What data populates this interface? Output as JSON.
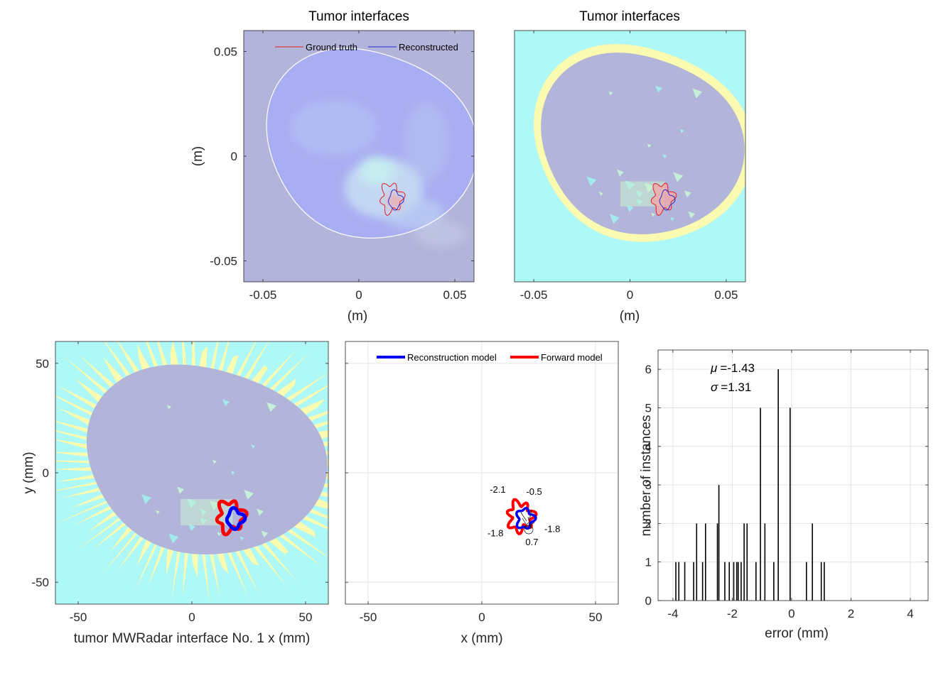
{
  "chart_data": [
    {
      "type": "heatmap",
      "title": "Tumor interfaces",
      "xlabel": "(m)",
      "ylabel": "(m)",
      "xlim": [
        -0.06,
        0.06
      ],
      "ylim": [
        -0.06,
        0.06
      ],
      "xticks": [
        -0.05,
        0,
        0.05
      ],
      "yticks": [
        -0.05,
        0,
        0.05
      ],
      "xtick_labels": [
        "-0.05",
        "0",
        "0.05"
      ],
      "ytick_labels": [
        "-0.05",
        "0",
        "0.05"
      ],
      "legend": {
        "position": "top",
        "entries": [
          {
            "label": "Ground truth",
            "color": "#e02020"
          },
          {
            "label": "Reconstructed",
            "color": "#2030d0"
          }
        ]
      },
      "colors": {
        "background": "#b3b4da",
        "outline": "#ffffff"
      }
    },
    {
      "type": "heatmap",
      "title": "Tumor interfaces",
      "xlabel": "(m)",
      "ylabel": "",
      "xlim": [
        -0.06,
        0.06
      ],
      "ylim": [
        -0.06,
        0.06
      ],
      "xticks": [
        -0.05,
        0,
        0.05
      ],
      "xtick_labels": [
        "-0.05",
        "0",
        "0.05"
      ],
      "colors": {
        "background": "#aef8f8",
        "skin": "#fafab0",
        "tissue": "#b3b4da"
      }
    },
    {
      "type": "heatmap",
      "title": "",
      "xlabel": "tumor MWRadar interface No. 1 x (mm)",
      "ylabel": "y (mm)",
      "xlim": [
        -60,
        60
      ],
      "ylim": [
        -60,
        60
      ],
      "xticks": [
        -50,
        0,
        50
      ],
      "yticks": [
        -50,
        0,
        50
      ],
      "xtick_labels": [
        "-50",
        "0",
        "50"
      ],
      "ytick_labels": [
        "-50",
        "0",
        "50"
      ],
      "colors": {
        "background": "#aef8f8",
        "skin": "#fafab0",
        "tissue": "#b3b4da",
        "forward": "#ff0000",
        "reconstruction": "#0000ff"
      }
    },
    {
      "type": "line",
      "title": "",
      "xlabel": "x (mm)",
      "ylabel": "",
      "xlim": [
        -60,
        60
      ],
      "ylim": [
        -60,
        60
      ],
      "xticks": [
        -50,
        0,
        50
      ],
      "xtick_labels": [
        "-50",
        "0",
        "50"
      ],
      "grid": true,
      "legend": {
        "position": "top-right",
        "entries": [
          {
            "label": "Reconstruction model",
            "color": "#0000ff"
          },
          {
            "label": "Forward model",
            "color": "#ff0000"
          }
        ]
      },
      "annotations": [
        {
          "text": "-2.1",
          "x": 7,
          "y": -9
        },
        {
          "text": "-0.5",
          "x": 23,
          "y": -10
        },
        {
          "text": "-1.8",
          "x": 6,
          "y": -29
        },
        {
          "text": "-1.8",
          "x": 31,
          "y": -27
        },
        {
          "text": "0.7",
          "x": 22,
          "y": -33
        }
      ]
    },
    {
      "type": "bar",
      "title": "",
      "xlabel": "error (mm)",
      "ylabel": "number of instances",
      "xlim": [
        -4.5,
        4.6
      ],
      "ylim": [
        0,
        6.5
      ],
      "xticks": [
        -4,
        -2,
        0,
        2,
        4
      ],
      "yticks": [
        0,
        1,
        2,
        3,
        4,
        5,
        6
      ],
      "xtick_labels": [
        "-4",
        "-2",
        "0",
        "2",
        "4"
      ],
      "ytick_labels": [
        "0",
        "1",
        "2",
        "3",
        "4",
        "5",
        "6"
      ],
      "stats": {
        "mu": "=-1.43",
        "sigma": "=1.31",
        "mu_symbol": "μ",
        "sigma_symbol": "σ"
      },
      "x": [
        -3.9,
        -3.8,
        -3.6,
        -3.3,
        -3.2,
        -3.0,
        -2.9,
        -2.5,
        -2.45,
        -2.25,
        -2.1,
        -1.95,
        -1.85,
        -1.8,
        -1.7,
        -1.6,
        -1.5,
        -1.2,
        -1.05,
        -0.9,
        -0.6,
        -0.45,
        -0.05,
        0.5,
        0.7,
        1.0,
        1.1
      ],
      "values": [
        1,
        1,
        1,
        1,
        2,
        1,
        2,
        2,
        3,
        1,
        1,
        1,
        1,
        1,
        1,
        2,
        2,
        1,
        5,
        2,
        1,
        6,
        5,
        1,
        2,
        1,
        1
      ]
    }
  ]
}
